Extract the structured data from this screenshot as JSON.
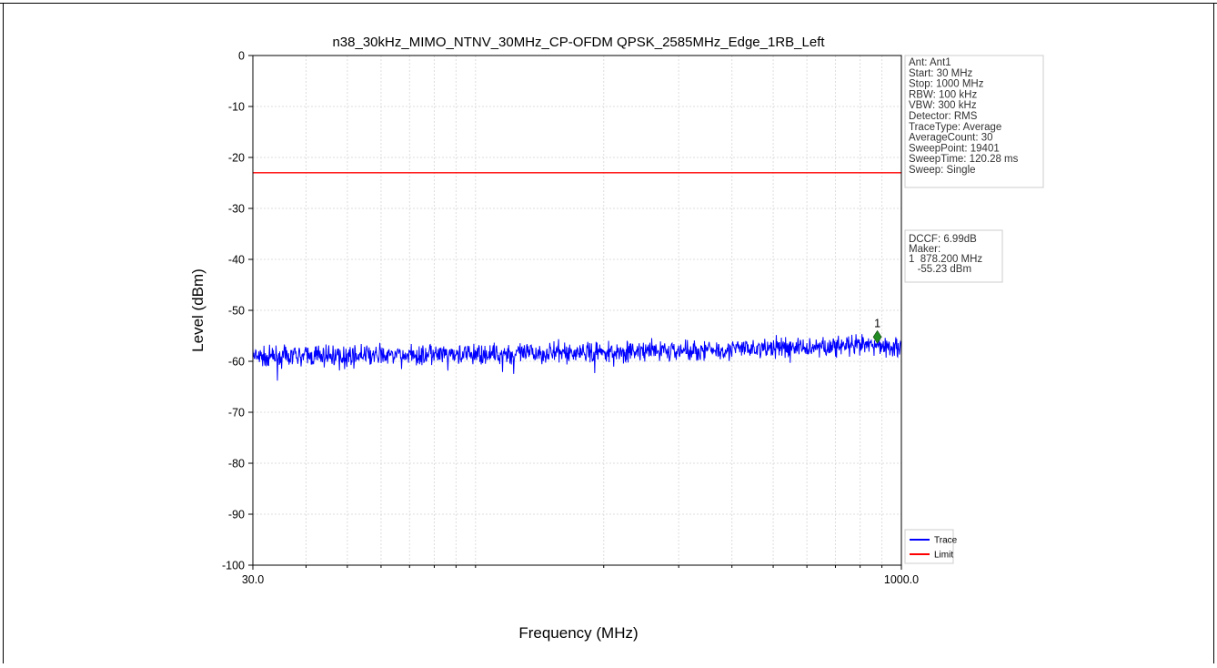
{
  "chart_data": {
    "type": "line",
    "title": "n38_30kHz_MIMO_NTNV_30MHz_CP-OFDM QPSK_2585MHz_Edge_1RB_Left",
    "xlabel": "Frequency (MHz)",
    "ylabel": "Level (dBm)",
    "xscale": "log",
    "xlim": [
      30.0,
      1000.0
    ],
    "ylim": [
      -100,
      0
    ],
    "x_tick_labels": [
      "30.0",
      "1000.0"
    ],
    "y_ticks": [
      0,
      -10,
      -20,
      -30,
      -40,
      -50,
      -60,
      -70,
      -80,
      -90,
      -100
    ],
    "grid": true,
    "series": [
      {
        "name": "Trace",
        "color": "#0000ff",
        "x": [
          30,
          40,
          50,
          60,
          80,
          100,
          150,
          200,
          300,
          400,
          500,
          600,
          700,
          800,
          878.2,
          1000
        ],
        "y": [
          -59.3,
          -59.0,
          -58.9,
          -58.9,
          -58.8,
          -58.7,
          -58.4,
          -58.2,
          -57.9,
          -57.6,
          -57.4,
          -57.2,
          -57.1,
          -57.0,
          -56.9,
          -57.1
        ],
        "band_dB": 2.2
      },
      {
        "name": "Limit",
        "color": "#ff0000",
        "x": [
          30,
          1000
        ],
        "y": [
          -23,
          -23
        ]
      }
    ],
    "marker": {
      "label": "1",
      "frequency_mhz": 878.2,
      "level_dbm": -55.23,
      "color": "#228b22"
    },
    "info_box": [
      "Ant: Ant1",
      "Start: 30 MHz",
      "Stop: 1000 MHz",
      "RBW: 100 kHz",
      "VBW: 300 kHz",
      "Detector: RMS",
      "TraceType: Average",
      "AverageCount: 30",
      "SweepPoint: 19401",
      "SweepTime: 120.28 ms",
      "Sweep: Single"
    ],
    "marker_box": [
      "DCCF: 6.99dB",
      "Maker:",
      "1  878.200 MHz",
      "   -55.23 dBm"
    ],
    "legend": [
      {
        "label": "Trace",
        "color": "#0000ff"
      },
      {
        "label": "Limit",
        "color": "#ff0000"
      }
    ],
    "legend_position": "bottom-right"
  }
}
